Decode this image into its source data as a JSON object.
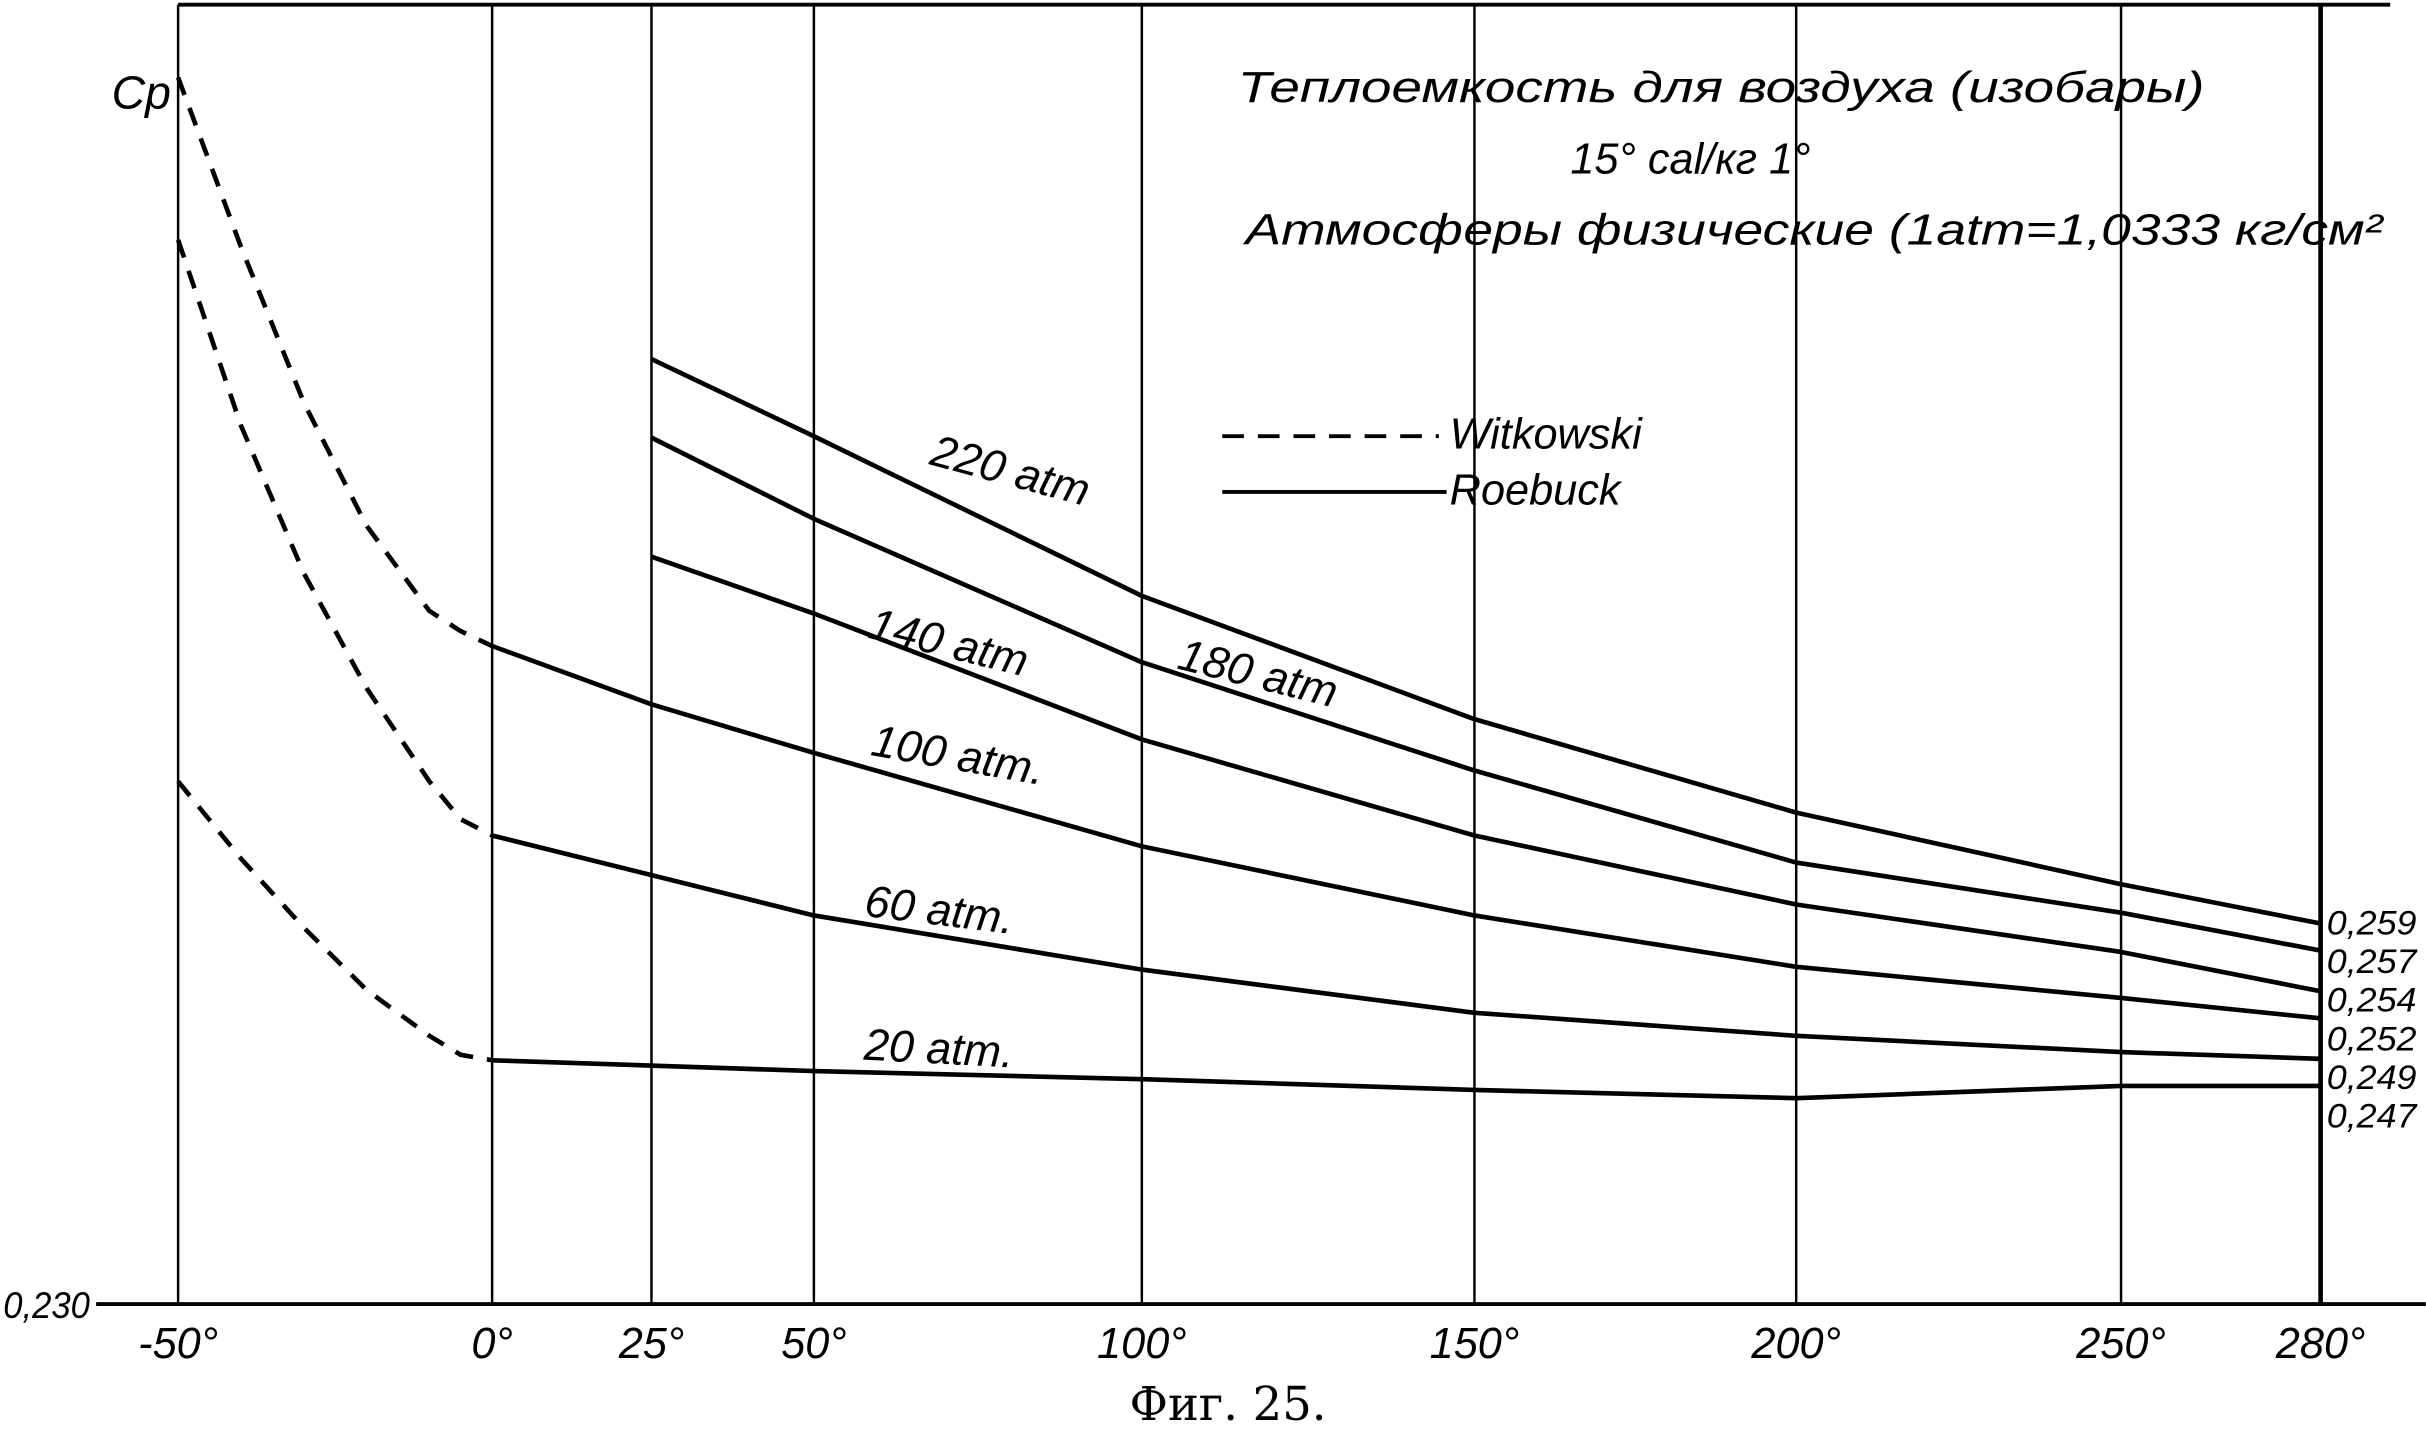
{
  "chart_data": {
    "type": "line",
    "title_lines": [
      "Теплоемкость для воздуха (изобары)",
      "15° cal/кг 1°",
      "Атмосферы физические (1atm=1,0333 кг/см²"
    ],
    "caption": "Фиг. 25.",
    "ylabel": "Cp",
    "xlabel": "",
    "y_origin_label": "0,230",
    "x_ticks": [
      {
        "value": -50,
        "label": "-50°"
      },
      {
        "value": 0,
        "label": "0°"
      },
      {
        "value": 25,
        "label": "25°"
      },
      {
        "value": 50,
        "label": "50°"
      },
      {
        "value": 100,
        "label": "100°"
      },
      {
        "value": 150,
        "label": "150°"
      },
      {
        "value": 200,
        "label": "200°"
      },
      {
        "value": 250,
        "label": "250°"
      },
      {
        "value": 280,
        "label": "280°"
      }
    ],
    "ylim": [
      0.23,
      0.322
    ],
    "grid": true,
    "legend": {
      "placement": "top-center-right",
      "entries": [
        {
          "name": "Witkowski",
          "style": "dashed"
        },
        {
          "name": "Roebuck",
          "style": "solid"
        }
      ]
    },
    "end_labels": [
      "0,259",
      "0,257",
      "0,254",
      "0,252",
      "0,249",
      "0,247"
    ],
    "series": [
      {
        "name": "220 atm",
        "source": "Roebuck",
        "x": [
          25,
          50,
          100,
          150,
          200,
          250,
          280
        ],
        "y": [
          0.3007,
          0.295,
          0.2832,
          0.2741,
          0.2672,
          0.2619,
          0.259
        ]
      },
      {
        "name": "180 atm",
        "source": "Roebuck",
        "x": [
          25,
          50,
          100,
          150,
          200,
          250,
          280
        ],
        "y": [
          0.2949,
          0.2889,
          0.2783,
          0.2703,
          0.2635,
          0.2598,
          0.257
        ]
      },
      {
        "name": "140 atm",
        "source": "Roebuck",
        "x": [
          25,
          50,
          100,
          150,
          200,
          250,
          280
        ],
        "y": [
          0.2861,
          0.2819,
          0.2726,
          0.2655,
          0.2604,
          0.2569,
          0.254
        ]
      },
      {
        "name": "100 atm.",
        "source": "Roebuck",
        "x": [
          0,
          25,
          50,
          100,
          150,
          200,
          250,
          280
        ],
        "y": [
          0.2795,
          0.2752,
          0.2716,
          0.2647,
          0.2596,
          0.2558,
          0.2535,
          0.252
        ]
      },
      {
        "name": "60 atm.",
        "source": "Roebuck",
        "x": [
          0,
          50,
          100,
          150,
          200,
          250,
          280
        ],
        "y": [
          0.2655,
          0.2596,
          0.2556,
          0.2524,
          0.2507,
          0.2495,
          0.249
        ]
      },
      {
        "name": "20 atm.",
        "source": "Roebuck",
        "x": [
          0,
          50,
          100,
          150,
          200,
          250,
          280
        ],
        "y": [
          0.2489,
          0.2481,
          0.2475,
          0.2467,
          0.2461,
          0.247,
          0.247
        ]
      },
      {
        "name": "Witkowski upper",
        "source": "Witkowski",
        "x": [
          -50,
          -40,
          -30,
          -20,
          -10,
          -5,
          0
        ],
        "y": [
          0.3215,
          0.309,
          0.2975,
          0.2884,
          0.2821,
          0.2806,
          0.2795
        ]
      },
      {
        "name": "Witkowski middle",
        "source": "Witkowski",
        "x": [
          -50,
          -40,
          -30,
          -20,
          -10,
          -5,
          0
        ],
        "y": [
          0.3095,
          0.2958,
          0.2849,
          0.2764,
          0.2695,
          0.2667,
          0.2655
        ]
      },
      {
        "name": "Witkowski lower",
        "source": "Witkowski",
        "x": [
          -50,
          -40,
          -30,
          -20,
          -10,
          -5,
          0
        ],
        "y": [
          0.2695,
          0.2638,
          0.2587,
          0.2541,
          0.2507,
          0.2493,
          0.2489
        ]
      }
    ]
  }
}
